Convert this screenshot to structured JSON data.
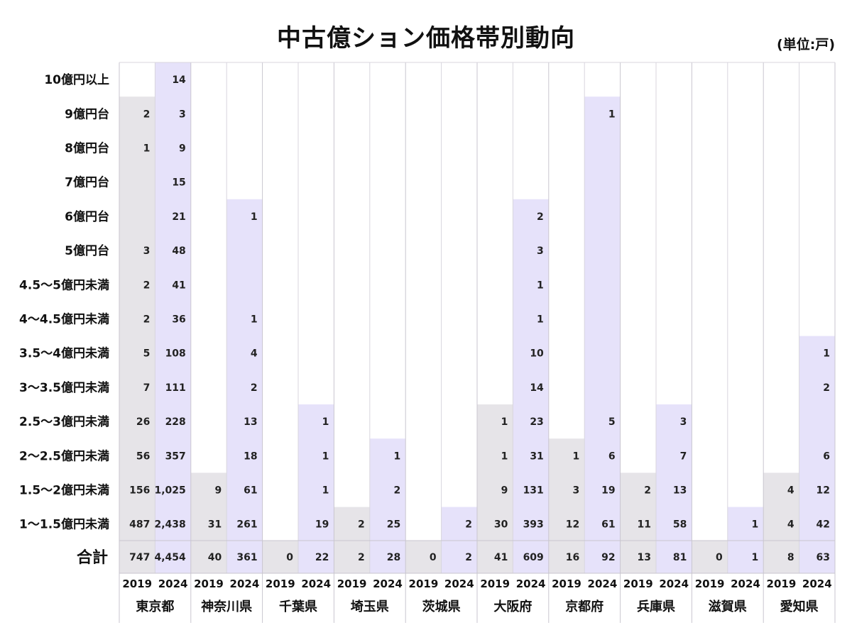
{
  "header": {
    "title": "中古億ション価格帯別動向",
    "unit": "(単位:戸)"
  },
  "colors": {
    "y2019": "#e6e4e8",
    "y2024": "#e6e2fa",
    "separator": "#c9c6cf",
    "grid": "#d8d6de"
  },
  "chart_data": {
    "type": "table",
    "title": "中古億ション価格帯別動向",
    "unit": "(単位:戸)",
    "years": [
      "2019",
      "2024"
    ],
    "total_label": "合計",
    "price_bands": [
      "10億円以上",
      "9億円台",
      "8億円台",
      "7億円台",
      "6億円台",
      "5億円台",
      "4.5～5億円未満",
      "4～4.5億円未満",
      "3.5～4億円未満",
      "3～3.5億円未満",
      "2.5～3億円未満",
      "2～2.5億円未満",
      "1.5～2億円未満",
      "1～1.5億円未満"
    ],
    "prefectures": [
      {
        "name": "東京都",
        "y2019": [
          null,
          "2",
          "1",
          null,
          null,
          "3",
          "2",
          "2",
          "5",
          "7",
          "26",
          "56",
          "156",
          "487"
        ],
        "y2024": [
          "14",
          "3",
          "9",
          "15",
          "21",
          "48",
          "41",
          "36",
          "108",
          "111",
          "228",
          "357",
          "1,025",
          "2,438"
        ],
        "total": [
          "747",
          "4,454"
        ]
      },
      {
        "name": "神奈川県",
        "y2019": [
          null,
          null,
          null,
          null,
          null,
          null,
          null,
          null,
          null,
          null,
          null,
          null,
          "9",
          "31"
        ],
        "y2024": [
          null,
          null,
          null,
          null,
          "1",
          null,
          null,
          "1",
          "4",
          "2",
          "13",
          "18",
          "61",
          "261"
        ],
        "total": [
          "40",
          "361"
        ]
      },
      {
        "name": "千葉県",
        "y2019": [
          null,
          null,
          null,
          null,
          null,
          null,
          null,
          null,
          null,
          null,
          null,
          null,
          null,
          null
        ],
        "y2024": [
          null,
          null,
          null,
          null,
          null,
          null,
          null,
          null,
          null,
          null,
          "1",
          "1",
          "1",
          "19"
        ],
        "total": [
          "0",
          "22"
        ]
      },
      {
        "name": "埼玉県",
        "y2019": [
          null,
          null,
          null,
          null,
          null,
          null,
          null,
          null,
          null,
          null,
          null,
          null,
          null,
          "2"
        ],
        "y2024": [
          null,
          null,
          null,
          null,
          null,
          null,
          null,
          null,
          null,
          null,
          null,
          "1",
          "2",
          "25"
        ],
        "total": [
          "2",
          "28"
        ]
      },
      {
        "name": "茨城県",
        "y2019": [
          null,
          null,
          null,
          null,
          null,
          null,
          null,
          null,
          null,
          null,
          null,
          null,
          null,
          null
        ],
        "y2024": [
          null,
          null,
          null,
          null,
          null,
          null,
          null,
          null,
          null,
          null,
          null,
          null,
          null,
          "2"
        ],
        "total": [
          "0",
          "2"
        ]
      },
      {
        "name": "大阪府",
        "y2019": [
          null,
          null,
          null,
          null,
          null,
          null,
          null,
          null,
          null,
          null,
          "1",
          "1",
          "9",
          "30"
        ],
        "y2024": [
          null,
          null,
          null,
          null,
          "2",
          "3",
          "1",
          "1",
          "10",
          "14",
          "23",
          "31",
          "131",
          "393"
        ],
        "total": [
          "41",
          "609"
        ]
      },
      {
        "name": "京都府",
        "y2019": [
          null,
          null,
          null,
          null,
          null,
          null,
          null,
          null,
          null,
          null,
          null,
          "1",
          "3",
          "12"
        ],
        "y2024": [
          null,
          "1",
          null,
          null,
          null,
          null,
          null,
          null,
          null,
          null,
          "5",
          "6",
          "19",
          "61"
        ],
        "total": [
          "16",
          "92"
        ]
      },
      {
        "name": "兵庫県",
        "y2019": [
          null,
          null,
          null,
          null,
          null,
          null,
          null,
          null,
          null,
          null,
          null,
          null,
          "2",
          "11"
        ],
        "y2024": [
          null,
          null,
          null,
          null,
          null,
          null,
          null,
          null,
          null,
          null,
          "3",
          "7",
          "13",
          "58"
        ],
        "total": [
          "13",
          "81"
        ]
      },
      {
        "name": "滋賀県",
        "y2019": [
          null,
          null,
          null,
          null,
          null,
          null,
          null,
          null,
          null,
          null,
          null,
          null,
          null,
          null
        ],
        "y2024": [
          null,
          null,
          null,
          null,
          null,
          null,
          null,
          null,
          null,
          null,
          null,
          null,
          null,
          "1"
        ],
        "total": [
          "0",
          "1"
        ]
      },
      {
        "name": "愛知県",
        "y2019": [
          null,
          null,
          null,
          null,
          null,
          null,
          null,
          null,
          null,
          null,
          null,
          null,
          "4",
          "4"
        ],
        "y2024": [
          null,
          null,
          null,
          null,
          null,
          null,
          null,
          null,
          "1",
          "2",
          null,
          "6",
          "12",
          "42"
        ],
        "total": [
          "8",
          "63"
        ]
      }
    ]
  }
}
